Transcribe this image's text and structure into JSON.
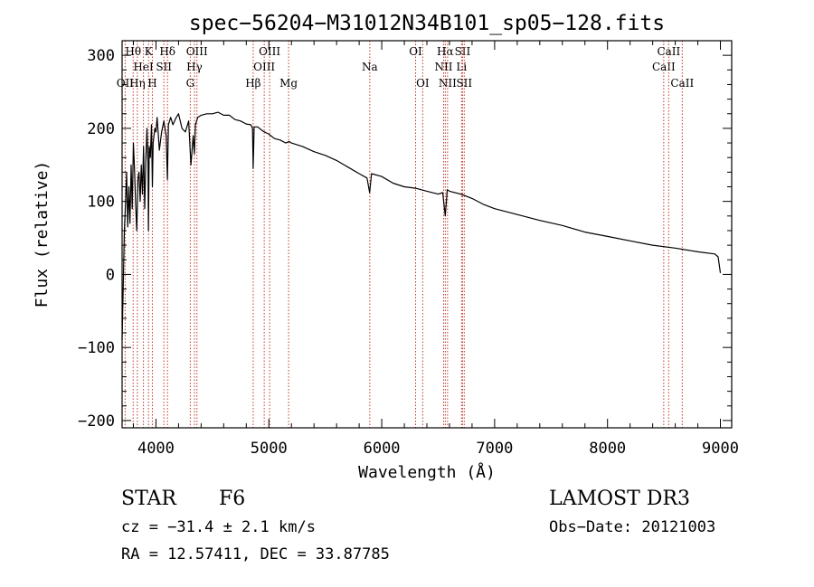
{
  "chart_data": {
    "type": "line",
    "title": "spec−56204−M31012N34B101_sp05−128.fits",
    "xlabel": "Wavelength (Å)",
    "ylabel": "Flux (relative)",
    "xlim": [
      3700,
      9100
    ],
    "ylim": [
      -210,
      320
    ],
    "x_ticks": [
      4000,
      5000,
      6000,
      7000,
      8000,
      9000
    ],
    "x_tick_labels": [
      "4000",
      "5000",
      "6000",
      "7000",
      "8000",
      "9000"
    ],
    "y_ticks": [
      300,
      200,
      100,
      0,
      -100,
      -200
    ],
    "y_tick_labels": [
      "300",
      "200",
      "100",
      "0",
      "−100",
      "−200"
    ],
    "series": [
      {
        "name": "spectrum",
        "color": "#000000",
        "x": [
          3700,
          3710,
          3720,
          3730,
          3740,
          3750,
          3760,
          3770,
          3780,
          3790,
          3800,
          3810,
          3820,
          3830,
          3840,
          3850,
          3860,
          3870,
          3880,
          3890,
          3900,
          3910,
          3920,
          3930,
          3933,
          3940,
          3950,
          3960,
          3968,
          3975,
          3990,
          4000,
          4010,
          4030,
          4050,
          4070,
          4090,
          4101,
          4110,
          4130,
          4150,
          4180,
          4200,
          4230,
          4260,
          4290,
          4310,
          4330,
          4340,
          4350,
          4370,
          4400,
          4450,
          4500,
          4550,
          4600,
          4650,
          4700,
          4750,
          4800,
          4840,
          4855,
          4861,
          4870,
          4900,
          4950,
          5000,
          5050,
          5100,
          5150,
          5180,
          5200,
          5300,
          5400,
          5500,
          5600,
          5700,
          5800,
          5870,
          5893,
          5910,
          6000,
          6100,
          6200,
          6300,
          6400,
          6500,
          6540,
          6563,
          6580,
          6600,
          6700,
          6800,
          6900,
          7000,
          7200,
          7400,
          7600,
          7800,
          8000,
          8200,
          8400,
          8600,
          8800,
          8950,
          8980,
          9000
        ],
        "y": [
          -90,
          -20,
          60,
          95,
          140,
          65,
          120,
          70,
          150,
          90,
          180,
          145,
          95,
          60,
          130,
          140,
          100,
          150,
          110,
          175,
          90,
          155,
          200,
          150,
          60,
          175,
          160,
          205,
          120,
          180,
          200,
          195,
          215,
          170,
          195,
          210,
          190,
          130,
          205,
          215,
          205,
          215,
          220,
          200,
          195,
          210,
          150,
          190,
          165,
          205,
          215,
          218,
          220,
          220,
          222,
          218,
          218,
          212,
          210,
          206,
          205,
          200,
          145,
          202,
          202,
          196,
          192,
          186,
          184,
          180,
          182,
          180,
          175,
          168,
          163,
          156,
          147,
          138,
          132,
          112,
          138,
          134,
          125,
          120,
          118,
          114,
          110,
          112,
          80,
          116,
          114,
          110,
          104,
          96,
          90,
          82,
          74,
          67,
          58,
          52,
          46,
          40,
          36,
          31,
          28,
          24,
          2
        ]
      }
    ],
    "line_markers": [
      {
        "name": "OII",
        "wavelength": 3727,
        "row": 2
      },
      {
        "name": "Hθ",
        "wavelength": 3798,
        "row": 0
      },
      {
        "name": "Hη",
        "wavelength": 3835,
        "row": 2
      },
      {
        "name": "HeI",
        "wavelength": 3889,
        "row": 1
      },
      {
        "name": "K",
        "wavelength": 3934,
        "row": 0
      },
      {
        "name": "H",
        "wavelength": 3968,
        "row": 2
      },
      {
        "name": "SII",
        "wavelength": 4070,
        "row": 1
      },
      {
        "name": "Hδ",
        "wavelength": 4102,
        "row": 0
      },
      {
        "name": "G",
        "wavelength": 4304,
        "row": 2
      },
      {
        "name": "Hγ",
        "wavelength": 4341,
        "row": 1
      },
      {
        "name": "OIII",
        "wavelength": 4363,
        "row": 0
      },
      {
        "name": "Hβ",
        "wavelength": 4861,
        "row": 2
      },
      {
        "name": "OIII",
        "wavelength": 4959,
        "row": 1
      },
      {
        "name": "OIII",
        "wavelength": 5007,
        "row": 0
      },
      {
        "name": "Mg",
        "wavelength": 5175,
        "row": 2
      },
      {
        "name": "Na",
        "wavelength": 5894,
        "row": 1
      },
      {
        "name": "OI",
        "wavelength": 6300,
        "row": 0
      },
      {
        "name": "OI",
        "wavelength": 6363,
        "row": 2
      },
      {
        "name": "NII",
        "wavelength": 6548,
        "row": 1
      },
      {
        "name": "Hα",
        "wavelength": 6563,
        "row": 0
      },
      {
        "name": "NII",
        "wavelength": 6583,
        "row": 2
      },
      {
        "name": "Li",
        "wavelength": 6707,
        "row": 1
      },
      {
        "name": "SII",
        "wavelength": 6716,
        "row": 0
      },
      {
        "name": "SII",
        "wavelength": 6731,
        "row": 2
      },
      {
        "name": "CaII",
        "wavelength": 8498,
        "row": 1
      },
      {
        "name": "CaII",
        "wavelength": 8542,
        "row": 0
      },
      {
        "name": "CaII",
        "wavelength": 8662,
        "row": 2
      }
    ],
    "marker_color": "#c0392b"
  },
  "footer": {
    "object_class": "STAR",
    "subclass": "F6",
    "survey": "LAMOST DR3",
    "cz": "cz = −31.4 ± 2.1 km/s",
    "obs_date": "Obs−Date: 20121003",
    "radec": "RA =  12.57411, DEC =  33.87785"
  }
}
